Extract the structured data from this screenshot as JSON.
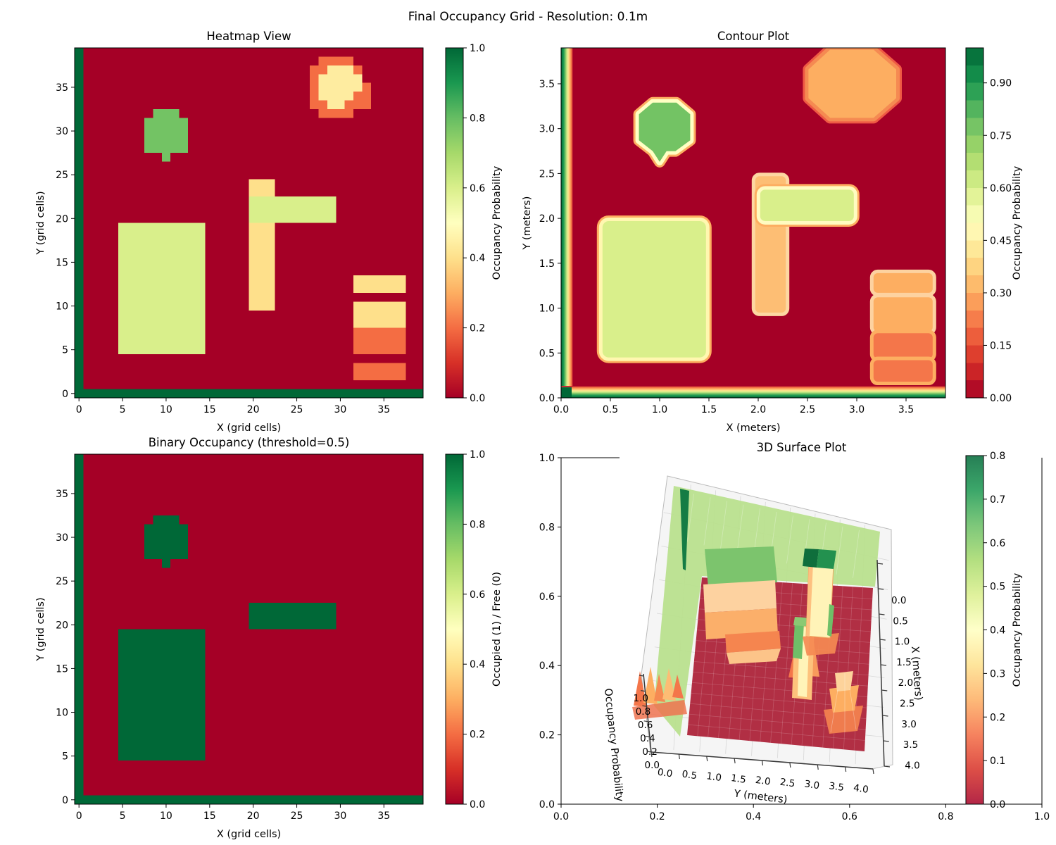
{
  "figure": {
    "title": "Final Occupancy Grid - Resolution: 0.1m",
    "background": "#ffffff"
  },
  "colormap_rdylgn": [
    [
      0.0,
      "#a50026"
    ],
    [
      0.1,
      "#d73027"
    ],
    [
      0.2,
      "#f46d43"
    ],
    [
      0.3,
      "#fdae61"
    ],
    [
      0.4,
      "#fee08b"
    ],
    [
      0.5,
      "#ffffbf"
    ],
    [
      0.6,
      "#d9ef8b"
    ],
    [
      0.7,
      "#a6d96a"
    ],
    [
      0.8,
      "#66bd63"
    ],
    [
      0.9,
      "#1a9850"
    ],
    [
      1.0,
      "#006837"
    ]
  ],
  "chart_data": [
    {
      "id": "heatmap",
      "type": "heatmap",
      "title": "Heatmap View",
      "xlabel": "X (grid cells)",
      "ylabel": "Y (grid cells)",
      "xlim": [
        -0.5,
        39.5
      ],
      "ylim": [
        -0.5,
        39.5
      ],
      "xtick_vals": [
        0,
        5,
        10,
        15,
        20,
        25,
        30,
        35
      ],
      "xtick_labels": [
        "0",
        "5",
        "10",
        "15",
        "20",
        "25",
        "30",
        "35"
      ],
      "ytick_vals": [
        0,
        5,
        10,
        15,
        20,
        25,
        30,
        35
      ],
      "ytick_labels": [
        "0",
        "5",
        "10",
        "15",
        "20",
        "25",
        "30",
        "35"
      ],
      "background_value": 0.0,
      "colorbar": {
        "label": "Occupancy Probability",
        "style": "continuous",
        "range": [
          0,
          1
        ],
        "tick_vals": [
          0,
          0.2,
          0.4,
          0.6,
          0.8,
          1.0
        ],
        "tick_labels": [
          "0.0",
          "0.2",
          "0.4",
          "0.6",
          "0.8",
          "1.0"
        ]
      },
      "regions": [
        {
          "name": "left-border-wall",
          "x0": -0.5,
          "x1": 0.5,
          "y0": -0.5,
          "y1": 39.5,
          "value": 1.0
        },
        {
          "name": "bottom-border-wall",
          "x0": -0.5,
          "x1": 39.5,
          "y0": -0.5,
          "y1": 0.5,
          "value": 1.0
        },
        {
          "name": "large-rectangle-obstacle",
          "x0": 4.5,
          "x1": 14.5,
          "y0": 4.5,
          "y1": 19.5,
          "value": 0.6
        },
        {
          "name": "tree-body",
          "x0": 7.5,
          "x1": 12.5,
          "y0": 27.5,
          "y1": 31.5,
          "value": 0.78
        },
        {
          "name": "tree-top",
          "x0": 8.5,
          "x1": 11.5,
          "y0": 31.5,
          "y1": 32.5,
          "value": 0.78
        },
        {
          "name": "tree-stem",
          "x0": 9.5,
          "x1": 10.5,
          "y0": 26.5,
          "y1": 27.5,
          "value": 0.78
        },
        {
          "name": "vertical-bar-lower",
          "x0": 19.5,
          "x1": 22.5,
          "y0": 9.5,
          "y1": 19.5,
          "value": 0.4
        },
        {
          "name": "vertical-bar-upper",
          "x0": 19.5,
          "x1": 22.5,
          "y0": 22.5,
          "y1": 24.5,
          "value": 0.4
        },
        {
          "name": "horizontal-bar",
          "x0": 19.5,
          "x1": 29.5,
          "y0": 19.5,
          "y1": 22.5,
          "value": 0.6
        },
        {
          "name": "right-bar-1",
          "x0": 31.5,
          "x1": 37.5,
          "y0": 11.5,
          "y1": 13.5,
          "value": 0.4
        },
        {
          "name": "right-bar-2",
          "x0": 31.5,
          "x1": 37.5,
          "y0": 7.5,
          "y1": 10.5,
          "value": 0.4
        },
        {
          "name": "right-bar-3",
          "x0": 31.5,
          "x1": 37.5,
          "y0": 4.5,
          "y1": 7.5,
          "value": 0.2
        },
        {
          "name": "right-bar-4",
          "x0": 31.5,
          "x1": 37.5,
          "y0": 1.5,
          "y1": 3.5,
          "value": 0.2
        },
        {
          "name": "disc-ring-bottom",
          "x0": 27.5,
          "x1": 31.5,
          "y0": 31.5,
          "y1": 32.5,
          "value": 0.2
        },
        {
          "name": "disc-ring-mid",
          "x0": 26.5,
          "x1": 33.5,
          "y0": 32.5,
          "y1": 35.5,
          "value": 0.2
        },
        {
          "name": "disc-ring-upper",
          "x0": 26.5,
          "x1": 32.5,
          "y0": 35.5,
          "y1": 37.5,
          "value": 0.2
        },
        {
          "name": "disc-ring-top",
          "x0": 27.5,
          "x1": 31.5,
          "y0": 37.5,
          "y1": 38.5,
          "value": 0.2
        },
        {
          "name": "disc-core-row1",
          "x0": 28.5,
          "x1": 30.5,
          "y0": 32.5,
          "y1": 33.5,
          "value": 0.44
        },
        {
          "name": "disc-core-row2",
          "x0": 27.5,
          "x1": 31.5,
          "y0": 33.5,
          "y1": 34.5,
          "value": 0.44
        },
        {
          "name": "disc-core-mid",
          "x0": 27.5,
          "x1": 32.5,
          "y0": 34.5,
          "y1": 36.5,
          "value": 0.44
        },
        {
          "name": "disc-core-top",
          "x0": 28.5,
          "x1": 31.5,
          "y0": 36.5,
          "y1": 37.5,
          "value": 0.44
        }
      ]
    },
    {
      "id": "contour",
      "type": "contour",
      "title": "Contour Plot",
      "xlabel": "X (meters)",
      "ylabel": "Y (meters)",
      "xlim": [
        0,
        3.9
      ],
      "ylim": [
        0,
        3.9
      ],
      "xtick_vals": [
        0,
        0.5,
        1,
        1.5,
        2,
        2.5,
        3,
        3.5
      ],
      "xtick_labels": [
        "0.0",
        "0.5",
        "1.0",
        "1.5",
        "2.0",
        "2.5",
        "3.0",
        "3.5"
      ],
      "ytick_vals": [
        0,
        0.5,
        1,
        1.5,
        2,
        2.5,
        3,
        3.5
      ],
      "ytick_labels": [
        "0.0",
        "0.5",
        "1.0",
        "1.5",
        "2.0",
        "2.5",
        "3.0",
        "3.5"
      ],
      "background_value": 0.0,
      "colorbar": {
        "label": "Occupancy Probability",
        "style": "segmented",
        "segments": 20,
        "range": [
          0,
          1
        ],
        "tick_vals": [
          0,
          0.15,
          0.3,
          0.45,
          0.6,
          0.75,
          0.9
        ],
        "tick_labels": [
          "0.00",
          "0.15",
          "0.30",
          "0.45",
          "0.60",
          "0.75",
          "0.90"
        ]
      },
      "border_walls": {
        "left_x": [
          0,
          0.12
        ],
        "bottom_y": [
          0,
          0.12
        ],
        "value": 1.0
      },
      "blobs": [
        {
          "name": "large-rectangle-obstacle",
          "shape": "rect",
          "x0": 0.42,
          "x1": 1.47,
          "y0": 0.45,
          "y1": 1.97,
          "r": 9,
          "fill_value": 0.6,
          "halo": [
            "#fdae61",
            "#fff7b0"
          ]
        },
        {
          "name": "vertical-bar",
          "shape": "rect",
          "x0": 1.97,
          "x1": 2.28,
          "y0": 0.95,
          "y1": 2.47,
          "r": 6,
          "fill": "#fdbe74",
          "halo": [
            "#fdd7a2"
          ]
        },
        {
          "name": "horizontal-bar",
          "shape": "rect",
          "x0": 2.02,
          "x1": 2.97,
          "y0": 1.97,
          "y1": 2.32,
          "r": 7,
          "fill_value": 0.6,
          "halo": [
            "#fdae61",
            "#fffbc0"
          ]
        },
        {
          "name": "tree-blob",
          "shape": "polygon",
          "points": [
            [
              0.79,
              2.87
            ],
            [
              0.79,
              3.16
            ],
            [
              0.93,
              3.29
            ],
            [
              1.17,
              3.29
            ],
            [
              1.31,
              3.16
            ],
            [
              1.31,
              2.87
            ],
            [
              1.16,
              2.75
            ],
            [
              1.07,
              2.75
            ],
            [
              1.0,
              2.63
            ],
            [
              0.93,
              2.75
            ]
          ],
          "fill_value": 0.78,
          "halo": [
            "#fdae61",
            "#ffffc4"
          ]
        },
        {
          "name": "disc",
          "shape": "polygon",
          "points": [
            [
              2.73,
              3.88
            ],
            [
              3.17,
              3.88
            ],
            [
              3.4,
              3.66
            ],
            [
              3.4,
              3.34
            ],
            [
              3.17,
              3.12
            ],
            [
              2.73,
              3.12
            ],
            [
              2.51,
              3.34
            ],
            [
              2.51,
              3.66
            ]
          ],
          "fill": "#fdae61",
          "halo": [
            "#ef5a44",
            "#f58a52"
          ]
        },
        {
          "name": "right-bar-1",
          "shape": "rect",
          "x0": 3.17,
          "x1": 3.77,
          "y0": 1.17,
          "y1": 1.39,
          "r": 6,
          "fill": "#fdae61",
          "halo": [
            "#fdd2a0"
          ]
        },
        {
          "name": "right-bar-2",
          "shape": "rect",
          "x0": 3.17,
          "x1": 3.77,
          "y0": 0.74,
          "y1": 1.12,
          "r": 6,
          "fill": "#fdae61",
          "halo": [
            "#fdd2a0"
          ]
        },
        {
          "name": "right-bar-3",
          "shape": "rect",
          "x0": 3.17,
          "x1": 3.77,
          "y0": 0.44,
          "y1": 0.72,
          "r": 6,
          "fill": "#f4764a",
          "halo": [
            "#fdae61"
          ]
        },
        {
          "name": "right-bar-4",
          "shape": "rect",
          "x0": 3.17,
          "x1": 3.77,
          "y0": 0.18,
          "y1": 0.42,
          "r": 6,
          "fill": "#f4764a",
          "halo": [
            "#fdae61"
          ]
        }
      ]
    },
    {
      "id": "binary",
      "type": "heatmap",
      "title": "Binary Occupancy (threshold=0.5)",
      "threshold": 0.5,
      "xlabel": "X (grid cells)",
      "ylabel": "Y (grid cells)",
      "xlim": [
        -0.5,
        39.5
      ],
      "ylim": [
        -0.5,
        39.5
      ],
      "xtick_vals": [
        0,
        5,
        10,
        15,
        20,
        25,
        30,
        35
      ],
      "xtick_labels": [
        "0",
        "5",
        "10",
        "15",
        "20",
        "25",
        "30",
        "35"
      ],
      "ytick_vals": [
        0,
        5,
        10,
        15,
        20,
        25,
        30,
        35
      ],
      "ytick_labels": [
        "0",
        "5",
        "10",
        "15",
        "20",
        "25",
        "30",
        "35"
      ],
      "background_value": 0.0,
      "colorbar": {
        "label": "Occupied (1) / Free (0)",
        "style": "continuous",
        "range": [
          0,
          1
        ],
        "tick_vals": [
          0,
          0.2,
          0.4,
          0.6,
          0.8,
          1.0
        ],
        "tick_labels": [
          "0.0",
          "0.2",
          "0.4",
          "0.6",
          "0.8",
          "1.0"
        ]
      },
      "regions": [
        {
          "name": "left-border-wall",
          "x0": -0.5,
          "x1": 0.5,
          "y0": -0.5,
          "y1": 39.5,
          "value": 1.0
        },
        {
          "name": "bottom-border-wall",
          "x0": -0.5,
          "x1": 39.5,
          "y0": -0.5,
          "y1": 0.5,
          "value": 1.0
        },
        {
          "name": "large-rectangle-obstacle",
          "x0": 4.5,
          "x1": 14.5,
          "y0": 4.5,
          "y1": 19.5,
          "value": 1.0
        },
        {
          "name": "tree-body",
          "x0": 7.5,
          "x1": 12.5,
          "y0": 27.5,
          "y1": 31.5,
          "value": 1.0
        },
        {
          "name": "tree-top",
          "x0": 8.5,
          "x1": 11.5,
          "y0": 31.5,
          "y1": 32.5,
          "value": 1.0
        },
        {
          "name": "tree-stem",
          "x0": 9.5,
          "x1": 10.5,
          "y0": 26.5,
          "y1": 27.5,
          "value": 1.0
        },
        {
          "name": "horizontal-bar",
          "x0": 19.5,
          "x1": 29.5,
          "y0": 19.5,
          "y1": 22.5,
          "value": 1.0
        }
      ]
    },
    {
      "id": "surface3d",
      "type": "surface",
      "title": "3D Surface Plot",
      "axis_labels": {
        "bottom": "Y (meters)",
        "right": "X (meters)",
        "vertical": "Occupancy Probability"
      },
      "bottom_tick_labels": [
        "0.0",
        "0.5",
        "1.0",
        "1.5",
        "2.0",
        "2.5",
        "3.0",
        "3.5",
        "4.0"
      ],
      "right_tick_labels": [
        "0.0",
        "0.5",
        "1.0",
        "1.5",
        "2.0",
        "2.5",
        "3.0",
        "3.5",
        "4.0"
      ],
      "vertical_tick_labels": [
        "1.0",
        "0.8",
        "0.6",
        "0.4",
        "0.2",
        "0.0"
      ],
      "outer_xtick_labels": [
        "0.0",
        "0.2",
        "0.4",
        "0.6",
        "0.8",
        "1.0"
      ],
      "outer_ytick_labels": [
        "1.0",
        "0.8",
        "0.6",
        "0.4",
        "0.2",
        "0.0"
      ],
      "colorbar": {
        "label": "Occupancy Probability",
        "style": "continuous-muted",
        "range": [
          0,
          0.8
        ],
        "alpha": 0.85,
        "tick_vals": [
          0,
          0.1,
          0.2,
          0.3,
          0.4,
          0.5,
          0.6,
          0.7,
          0.8
        ],
        "tick_labels": [
          "0.0",
          "0.1",
          "0.2",
          "0.3",
          "0.4",
          "0.5",
          "0.6",
          "0.7",
          "0.8"
        ]
      },
      "colors": {
        "floor": "#b12f44",
        "plane": "#b9e08e",
        "pane": "#f5f5f5",
        "pane_grid": "#d7d7d7",
        "spike": "#157c44"
      },
      "features": [
        {
          "name": "left-border-wall",
          "x_m": 0.0,
          "height": 1.0
        },
        {
          "name": "bottom-border-wall",
          "y_m": 0.0,
          "height": 1.0
        },
        {
          "name": "mid-plane",
          "height": 0.5
        },
        {
          "name": "large-rectangle-obstacle",
          "x_m": [
            0.5,
            1.4
          ],
          "y_m": [
            0.5,
            1.9
          ],
          "height": 0.6
        },
        {
          "name": "tree-blob",
          "x_m": [
            0.8,
            1.2
          ],
          "y_m": [
            2.7,
            3.2
          ],
          "height": 0.75
        },
        {
          "name": "vertical-bar",
          "x_m": [
            2.0,
            2.2
          ],
          "y_m": [
            1.0,
            2.4
          ],
          "height": 0.4
        },
        {
          "name": "horizontal-bar",
          "x_m": [
            2.0,
            2.9
          ],
          "y_m": [
            2.0,
            2.2
          ],
          "height": 0.6
        },
        {
          "name": "disc",
          "x_m": [
            2.7,
            3.2
          ],
          "y_m": [
            3.2,
            3.8
          ],
          "height": 0.45
        },
        {
          "name": "right-bars",
          "x_m": [
            3.2,
            3.7
          ],
          "y_m": [
            0.2,
            1.3
          ],
          "height": 0.4
        }
      ]
    }
  ]
}
